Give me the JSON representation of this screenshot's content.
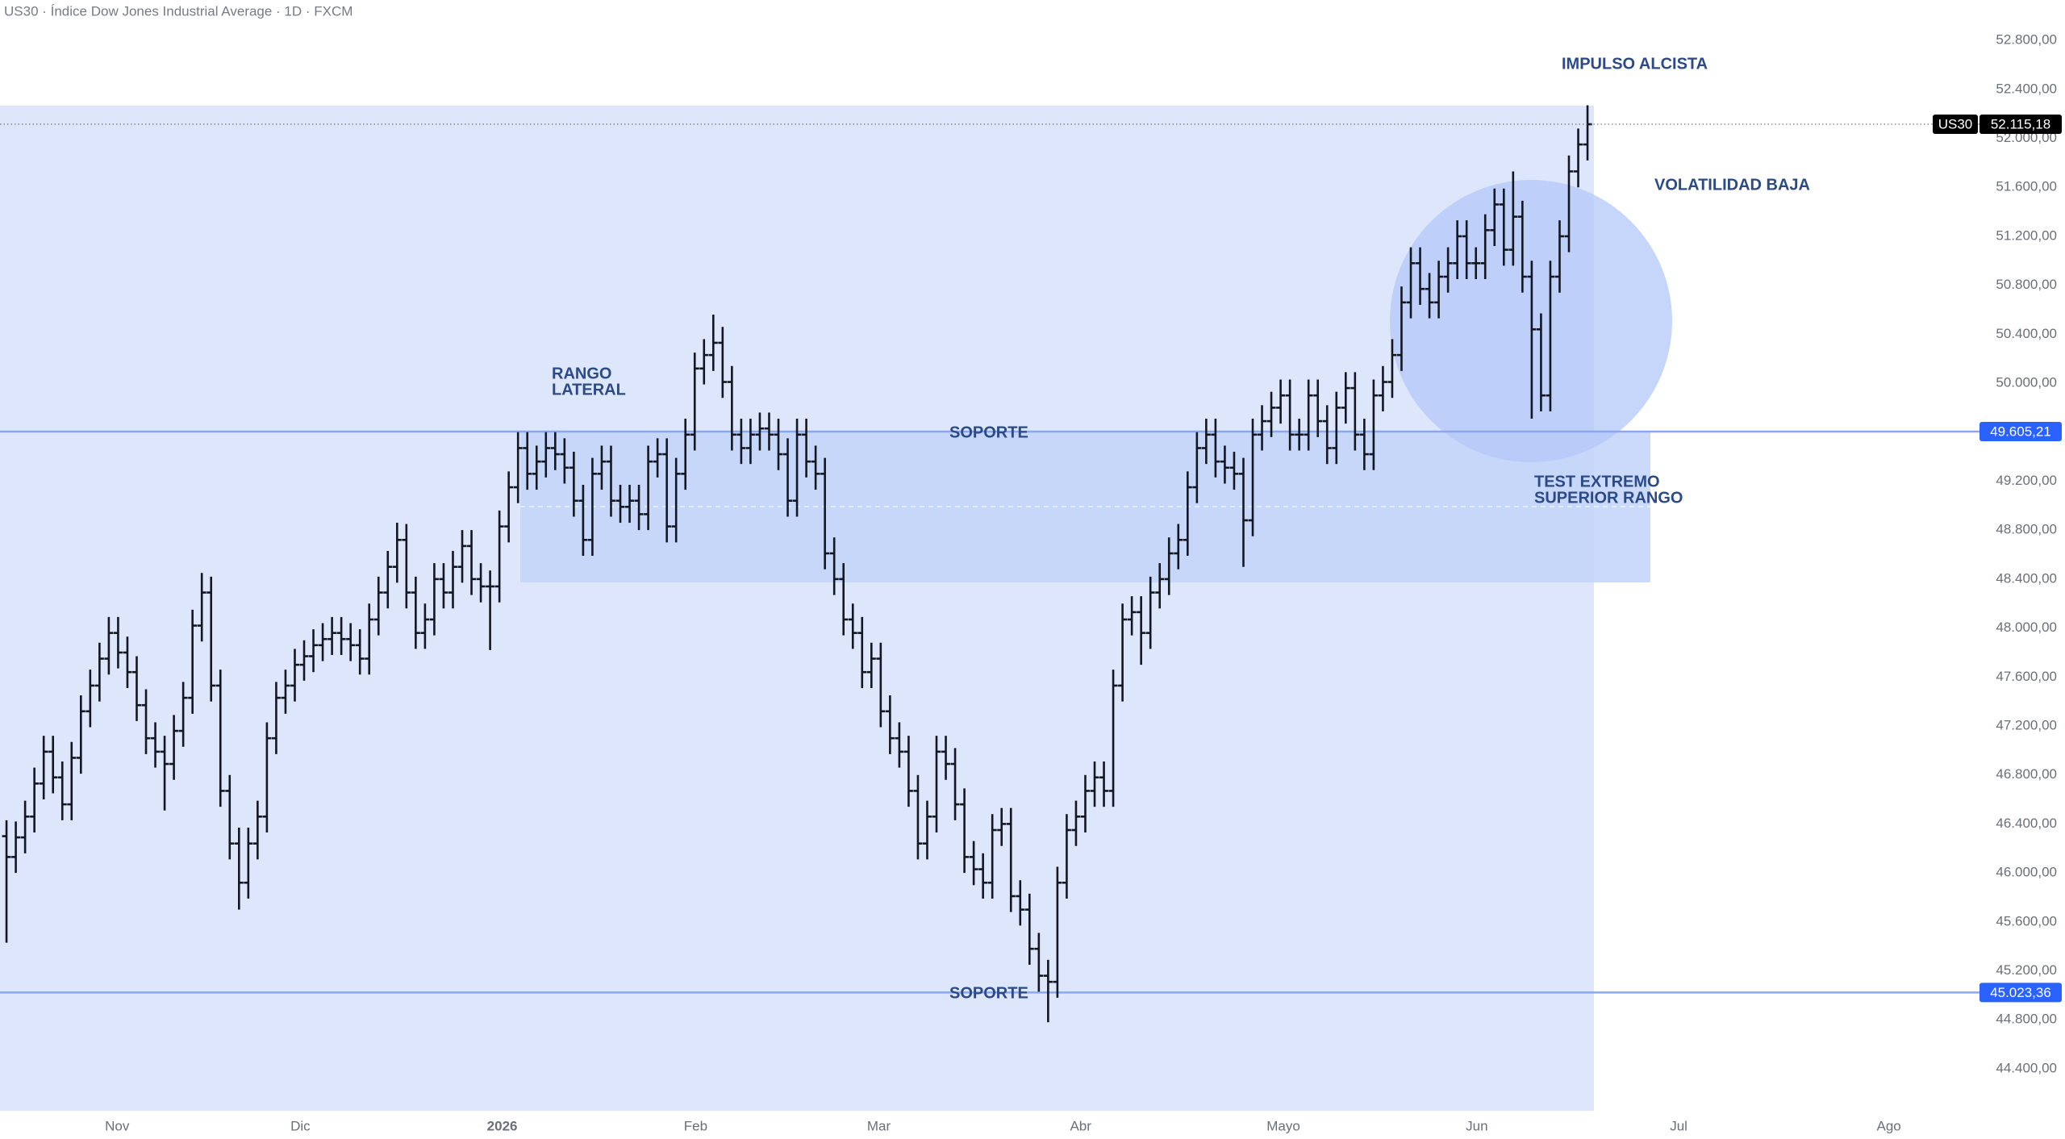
{
  "chart_data": {
    "type": "ohlc",
    "title": "US30 · Índice Dow Jones Industrial Average · 1D · FXCM",
    "series": [
      {
        "name": "US30",
        "color": "#131722",
        "open": [
          46300,
          46130,
          46290,
          46460,
          46730,
          46990,
          46780,
          46560,
          46940,
          47320,
          47530,
          47750,
          47960,
          47800,
          47640,
          47370,
          47100,
          46990,
          46890,
          47160,
          47430,
          48020,
          48290,
          47530,
          46670,
          46240,
          45920,
          46240,
          46460,
          47100,
          47430,
          47530,
          47700,
          47770,
          47860,
          47910,
          47960,
          47910,
          47860,
          47750,
          48070,
          48290,
          48500,
          48720,
          48290,
          47960,
          48070,
          48400,
          48290,
          48500,
          48670,
          48400,
          48340,
          48340,
          48830,
          49150,
          49470,
          49260,
          49360,
          49470,
          49420,
          49310,
          49040,
          48720,
          49260,
          49360,
          49040,
          48990,
          49040,
          48930,
          49360,
          49420,
          48830,
          49260,
          49580,
          50120,
          50230,
          50330,
          50010,
          49580,
          49470,
          49580,
          49630,
          49580,
          49420,
          49040,
          49580,
          49360,
          49260,
          48610,
          48400,
          48070,
          47960,
          47640,
          47750,
          47320,
          47100,
          46990,
          46670,
          46240,
          46460,
          46990,
          46890,
          46560,
          46130,
          46030,
          45920,
          46350,
          46400,
          45810,
          45700,
          45380,
          45160,
          45110,
          45920,
          46350,
          46460,
          46670,
          46780,
          46670,
          47530,
          48070,
          48130,
          47960,
          48290,
          48400,
          48610,
          48720,
          49150,
          49470,
          49580,
          49360,
          49310,
          49260,
          48880,
          49580,
          49690,
          49800,
          49900,
          49580,
          49580,
          49900,
          49690,
          49470,
          49800,
          49960,
          49580,
          49420,
          49900,
          50010,
          50230,
          50660,
          50980,
          50770,
          50660,
          50870,
          50980,
          51200,
          50980,
          50980,
          51250,
          51460,
          51090,
          51360,
          50870,
          50440,
          49900,
          50870,
          51200,
          51730,
          51950
        ],
        "high": [
          46430,
          46420,
          46590,
          46860,
          47120,
          47120,
          46910,
          47070,
          47450,
          47660,
          47880,
          48090,
          48090,
          47930,
          47770,
          47500,
          47230,
          47120,
          47290,
          47560,
          48150,
          48450,
          48420,
          47660,
          46800,
          46370,
          46370,
          46590,
          47230,
          47560,
          47660,
          47830,
          47900,
          47990,
          48040,
          48090,
          48090,
          48040,
          47990,
          48200,
          48420,
          48630,
          48860,
          48850,
          48420,
          48200,
          48530,
          48530,
          48630,
          48800,
          48800,
          48530,
          48470,
          48960,
          49280,
          49600,
          49600,
          49490,
          49600,
          49600,
          49550,
          49440,
          49170,
          49390,
          49490,
          49490,
          49170,
          49170,
          49170,
          49490,
          49550,
          49550,
          49390,
          49710,
          50250,
          50360,
          50560,
          50460,
          50140,
          49710,
          49710,
          49760,
          49760,
          49710,
          49550,
          49710,
          49710,
          49490,
          49390,
          48740,
          48530,
          48200,
          48090,
          47880,
          47880,
          47450,
          47230,
          47120,
          46800,
          46590,
          47120,
          47120,
          47020,
          46690,
          46260,
          46160,
          46480,
          46530,
          46530,
          45940,
          45830,
          45510,
          45290,
          46050,
          46480,
          46590,
          46800,
          46910,
          46910,
          47660,
          48200,
          48260,
          48260,
          48420,
          48530,
          48740,
          48850,
          49280,
          49600,
          49710,
          49710,
          49490,
          49440,
          49390,
          49710,
          49820,
          49930,
          50030,
          50030,
          49710,
          50030,
          50030,
          49820,
          49930,
          50090,
          50090,
          49710,
          50030,
          50140,
          50360,
          50790,
          51110,
          51110,
          50900,
          51000,
          51110,
          51330,
          51330,
          51110,
          51380,
          51590,
          51590,
          51730,
          51490,
          51000,
          50570,
          51000,
          51330,
          51860,
          52080,
          52270
        ],
        "low": [
          45430,
          46000,
          46160,
          46330,
          46600,
          46650,
          46430,
          46430,
          46810,
          47190,
          47400,
          47620,
          47670,
          47510,
          47240,
          46970,
          46860,
          46510,
          46760,
          47030,
          47300,
          47890,
          47400,
          46540,
          46110,
          45700,
          45790,
          46110,
          46330,
          46970,
          47300,
          47400,
          47570,
          47640,
          47730,
          47780,
          47780,
          47730,
          47620,
          47620,
          47940,
          48160,
          48370,
          48160,
          47830,
          47830,
          47940,
          48160,
          48160,
          48370,
          48270,
          48210,
          47820,
          48210,
          48700,
          49020,
          49130,
          49130,
          49230,
          49290,
          49180,
          48910,
          48590,
          48590,
          49130,
          48910,
          48860,
          48860,
          48800,
          48800,
          49230,
          48700,
          48700,
          49130,
          49450,
          49990,
          50100,
          49880,
          49450,
          49340,
          49340,
          49450,
          49450,
          49290,
          48910,
          48910,
          49230,
          49130,
          48480,
          48270,
          47940,
          47830,
          47510,
          47510,
          47190,
          46970,
          46860,
          46540,
          46110,
          46110,
          46330,
          46760,
          46430,
          46000,
          45900,
          45790,
          45790,
          46220,
          45680,
          45570,
          45250,
          45030,
          44780,
          44980,
          45790,
          46220,
          46330,
          46540,
          46540,
          46540,
          47400,
          47940,
          47700,
          47830,
          48160,
          48270,
          48480,
          48590,
          49020,
          49340,
          49230,
          49180,
          49130,
          48500,
          48750,
          49450,
          49560,
          49670,
          49450,
          49450,
          49450,
          49560,
          49340,
          49340,
          49670,
          49450,
          49290,
          49290,
          49770,
          49880,
          50100,
          50530,
          50640,
          50530,
          50530,
          50740,
          50850,
          50850,
          50850,
          50850,
          51120,
          50960,
          50960,
          50740,
          49710,
          49770,
          49770,
          50740,
          51070,
          51600,
          51820
        ],
        "close": [
          46130,
          46290,
          46460,
          46730,
          46990,
          46780,
          46560,
          46940,
          47320,
          47530,
          47750,
          47960,
          47800,
          47640,
          47370,
          47100,
          46990,
          46890,
          47160,
          47430,
          48020,
          48290,
          47530,
          46670,
          46240,
          45920,
          46240,
          46460,
          47100,
          47430,
          47530,
          47700,
          47770,
          47860,
          47910,
          47960,
          47910,
          47860,
          47750,
          48070,
          48290,
          48500,
          48720,
          48290,
          47960,
          48070,
          48400,
          48290,
          48500,
          48670,
          48400,
          48340,
          48340,
          48830,
          49150,
          49470,
          49260,
          49360,
          49470,
          49420,
          49310,
          49040,
          48720,
          49260,
          49360,
          49040,
          48990,
          49040,
          48930,
          49360,
          49420,
          48830,
          49260,
          49580,
          50120,
          50230,
          50330,
          50010,
          49580,
          49470,
          49580,
          49630,
          49580,
          49420,
          49040,
          49580,
          49360,
          49260,
          48610,
          48400,
          48070,
          47960,
          47640,
          47750,
          47320,
          47100,
          46990,
          46670,
          46240,
          46460,
          46990,
          46890,
          46560,
          46130,
          46030,
          45920,
          46350,
          46400,
          45810,
          45700,
          45380,
          45160,
          45110,
          45920,
          46350,
          46460,
          46670,
          46780,
          46670,
          47530,
          48070,
          48130,
          47960,
          48290,
          48400,
          48610,
          48720,
          49150,
          49470,
          49580,
          49360,
          49310,
          49260,
          48880,
          49580,
          49690,
          49800,
          49900,
          49580,
          49580,
          49900,
          49690,
          49470,
          49800,
          49960,
          49580,
          49420,
          49900,
          50010,
          50230,
          50660,
          50980,
          50770,
          50660,
          50870,
          50980,
          51200,
          50980,
          50980,
          51250,
          51460,
          51090,
          51360,
          50870,
          50440,
          49900,
          50870,
          51200,
          51730,
          51950,
          52115.18
        ]
      }
    ],
    "xlim": [
      -0.7,
      211.8
    ],
    "xticks": [
      {
        "value": 11.9,
        "label": "Nov"
      },
      {
        "value": 31.6,
        "label": "Dic"
      },
      {
        "value": 53.3,
        "label": "2026"
      },
      {
        "value": 74.1,
        "label": "Feb"
      },
      {
        "value": 93.8,
        "label": "Mar"
      },
      {
        "value": 115.5,
        "label": "Abr"
      },
      {
        "value": 137.3,
        "label": "Mayo"
      },
      {
        "value": 158.1,
        "label": "Jun"
      },
      {
        "value": 179.8,
        "label": "Jul"
      },
      {
        "value": 202.4,
        "label": "Ago"
      }
    ],
    "ylim": [
      44090,
      53130
    ],
    "yticks": [
      {
        "value": 44400,
        "label": "44.400,00"
      },
      {
        "value": 44800,
        "label": "44.800,00"
      },
      {
        "value": 45200,
        "label": "45.200,00"
      },
      {
        "value": 45600,
        "label": "45.600,00"
      },
      {
        "value": 46000,
        "label": "46.000,00"
      },
      {
        "value": 46400,
        "label": "46.400,00"
      },
      {
        "value": 46800,
        "label": "46.800,00"
      },
      {
        "value": 47200,
        "label": "47.200,00"
      },
      {
        "value": 47600,
        "label": "47.600,00"
      },
      {
        "value": 48000,
        "label": "48.000,00"
      },
      {
        "value": 48400,
        "label": "48.400,00"
      },
      {
        "value": 48800,
        "label": "48.800,00"
      },
      {
        "value": 49200,
        "label": "49.200,00"
      },
      {
        "value": 49600,
        "label": "49.600,00"
      },
      {
        "value": 50000,
        "label": "50.000,00"
      },
      {
        "value": 50400,
        "label": "50.400,00"
      },
      {
        "value": 50800,
        "label": "50.800,00"
      },
      {
        "value": 51200,
        "label": "51.200,00"
      },
      {
        "value": 51600,
        "label": "51.600,00"
      },
      {
        "value": 52000,
        "label": "52.000,00"
      },
      {
        "value": 52400,
        "label": "52.400,00"
      },
      {
        "value": 52800,
        "label": "52.800,00"
      }
    ],
    "last_price": {
      "value": 52115.18,
      "label": "52.115,18"
    },
    "levels": [
      {
        "value": 49605.21,
        "label": "49.605,21"
      },
      {
        "value": 45023.36,
        "label": "45.023,36"
      }
    ],
    "level_color": "#2962ff",
    "annotations": [
      {
        "lines": [
          "IMPULSO ALCISTA"
        ]
      },
      {
        "lines": [
          "VOLATILIDAD BAJA"
        ]
      },
      {
        "lines": [
          "RANGO",
          "LATERAL"
        ]
      },
      {
        "lines": [
          "SOPORTE"
        ]
      },
      {
        "lines": [
          "SOPORTE"
        ]
      },
      {
        "lines": [
          "TEST EXTREMO",
          "SUPERIOR RANGO"
        ]
      }
    ]
  }
}
